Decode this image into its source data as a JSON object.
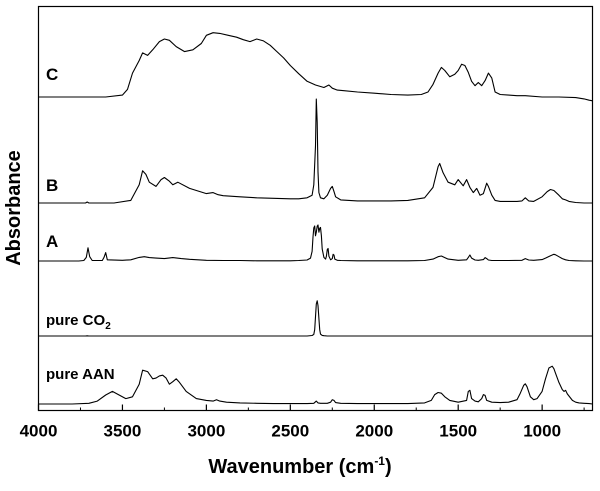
{
  "chart_data": {
    "type": "line",
    "title": "",
    "xlabel": "Wavenumber (cm-1)",
    "xlabel_parts": {
      "main": "Wavenumber (cm",
      "sup": "-1",
      "close": ")"
    },
    "ylabel": "Absorbance",
    "xlim": [
      4000,
      700
    ],
    "x_reversed": true,
    "y_ticks_labeled": false,
    "xticks": [
      4000,
      3500,
      3000,
      2500,
      2000,
      1500,
      1000
    ],
    "xtick_labels": [
      "4000",
      "3500",
      "3000",
      "2500",
      "2000",
      "1500",
      "1000"
    ],
    "grid": false,
    "legend": "none",
    "series": [
      {
        "name": "C",
        "label": {
          "main": "C",
          "sub": ""
        },
        "baseline": 0,
        "x": [
          4000,
          3600,
          3500,
          3470,
          3440,
          3400,
          3380,
          3350,
          3320,
          3280,
          3250,
          3220,
          3180,
          3130,
          3080,
          3030,
          3000,
          2960,
          2920,
          2870,
          2820,
          2780,
          2740,
          2700,
          2660,
          2620,
          2580,
          2540,
          2500,
          2450,
          2400,
          2350,
          2300,
          2270,
          2250,
          2220,
          2180,
          2100,
          2000,
          1900,
          1800,
          1720,
          1680,
          1650,
          1620,
          1600,
          1580,
          1550,
          1520,
          1500,
          1480,
          1460,
          1440,
          1420,
          1400,
          1380,
          1360,
          1340,
          1320,
          1300,
          1280,
          1250,
          1200,
          1150,
          1100,
          1000,
          900,
          800,
          750,
          720,
          700
        ],
        "y": [
          0,
          0,
          0.03,
          0.12,
          0.38,
          0.58,
          0.7,
          0.66,
          0.75,
          0.88,
          0.92,
          0.9,
          0.8,
          0.72,
          0.75,
          0.85,
          0.98,
          1.02,
          1.01,
          0.98,
          0.95,
          0.91,
          0.88,
          0.92,
          0.89,
          0.82,
          0.72,
          0.62,
          0.5,
          0.37,
          0.25,
          0.19,
          0.15,
          0.19,
          0.14,
          0.11,
          0.1,
          0.08,
          0.06,
          0.04,
          0.03,
          0.04,
          0.08,
          0.2,
          0.38,
          0.47,
          0.42,
          0.32,
          0.36,
          0.42,
          0.52,
          0.5,
          0.39,
          0.25,
          0.18,
          0.23,
          0.18,
          0.26,
          0.38,
          0.3,
          0.08,
          0.04,
          0.03,
          0.02,
          0.02,
          0.0,
          0.0,
          -0.01,
          -0.03,
          -0.05,
          -0.06
        ]
      },
      {
        "name": "B",
        "label": {
          "main": "B",
          "sub": ""
        },
        "baseline": 0,
        "x": [
          4000,
          3720,
          3710,
          3700,
          3550,
          3450,
          3400,
          3380,
          3360,
          3340,
          3300,
          3270,
          3250,
          3220,
          3200,
          3170,
          3100,
          3000,
          2960,
          2930,
          2900,
          2800,
          2700,
          2600,
          2500,
          2450,
          2400,
          2370,
          2360,
          2350,
          2345,
          2340,
          2335,
          2330,
          2320,
          2300,
          2280,
          2260,
          2250,
          2240,
          2230,
          2200,
          2100,
          2000,
          1900,
          1800,
          1700,
          1650,
          1620,
          1610,
          1590,
          1560,
          1520,
          1500,
          1470,
          1450,
          1430,
          1410,
          1390,
          1370,
          1350,
          1330,
          1320,
          1300,
          1280,
          1250,
          1200,
          1150,
          1120,
          1100,
          1080,
          1050,
          1000,
          970,
          950,
          930,
          900,
          880,
          860,
          840,
          800,
          750,
          700
        ],
        "y": [
          0,
          0,
          0.02,
          0,
          0,
          0.05,
          0.35,
          0.62,
          0.55,
          0.4,
          0.32,
          0.45,
          0.49,
          0.42,
          0.35,
          0.4,
          0.28,
          0.18,
          0.2,
          0.16,
          0.14,
          0.12,
          0.1,
          0.09,
          0.08,
          0.08,
          0.1,
          0.15,
          0.35,
          1.1,
          2.0,
          1.55,
          0.6,
          0.2,
          0.1,
          0.08,
          0.15,
          0.28,
          0.32,
          0.22,
          0.12,
          0.06,
          0.04,
          0.04,
          0.04,
          0.05,
          0.1,
          0.3,
          0.7,
          0.76,
          0.58,
          0.4,
          0.35,
          0.45,
          0.33,
          0.45,
          0.3,
          0.2,
          0.28,
          0.15,
          0.18,
          0.38,
          0.32,
          0.15,
          0.05,
          0.03,
          0.03,
          0.03,
          0.04,
          0.1,
          0.04,
          0.03,
          0.12,
          0.22,
          0.26,
          0.24,
          0.15,
          0.08,
          0.06,
          0.03,
          0.01,
          0,
          0
        ]
      },
      {
        "name": "A",
        "label": {
          "main": "A",
          "sub": ""
        },
        "baseline": 0,
        "x": [
          4000,
          3760,
          3730,
          3715,
          3705,
          3695,
          3680,
          3620,
          3610,
          3600,
          3590,
          3500,
          3450,
          3400,
          3370,
          3340,
          3300,
          3250,
          3200,
          3150,
          3100,
          3000,
          2900,
          2800,
          2700,
          2600,
          2500,
          2450,
          2400,
          2380,
          2370,
          2365,
          2360,
          2355,
          2350,
          2345,
          2340,
          2335,
          2330,
          2325,
          2320,
          2315,
          2310,
          2300,
          2290,
          2285,
          2280,
          2275,
          2270,
          2260,
          2250,
          2245,
          2240,
          2235,
          2220,
          2200,
          2100,
          2000,
          1900,
          1800,
          1700,
          1650,
          1620,
          1600,
          1580,
          1560,
          1500,
          1450,
          1440,
          1430,
          1420,
          1400,
          1380,
          1350,
          1340,
          1330,
          1320,
          1300,
          1200,
          1120,
          1100,
          1080,
          1050,
          1000,
          980,
          950,
          930,
          920,
          900,
          880,
          860,
          840,
          800,
          750,
          700
        ],
        "y": [
          0,
          0,
          0.02,
          0.15,
          0.55,
          0.18,
          0.02,
          0.02,
          0.15,
          0.35,
          0.05,
          0.03,
          0.05,
          0.15,
          0.18,
          0.14,
          0.12,
          0.1,
          0.14,
          0.1,
          0.07,
          0.03,
          0.02,
          0.02,
          0.01,
          0.01,
          0.01,
          0.02,
          0.04,
          0.12,
          0.4,
          1.0,
          1.38,
          1.46,
          1.05,
          1.2,
          1.45,
          1.5,
          1.2,
          1.36,
          1.4,
          1.05,
          0.5,
          0.15,
          0.08,
          0.2,
          0.48,
          0.52,
          0.2,
          0.05,
          0.1,
          0.28,
          0.25,
          0.08,
          0.03,
          0.02,
          0.01,
          0.01,
          0.01,
          0.01,
          0.02,
          0.08,
          0.18,
          0.21,
          0.14,
          0.08,
          0.03,
          0.05,
          0.15,
          0.25,
          0.12,
          0.04,
          0.03,
          0.06,
          0.14,
          0.1,
          0.04,
          0.02,
          0.02,
          0.03,
          0.1,
          0.04,
          0.03,
          0.06,
          0.12,
          0.22,
          0.28,
          0.26,
          0.18,
          0.1,
          0.05,
          0.02,
          0.01,
          0,
          0
        ]
      },
      {
        "name": "pure CO2",
        "label": {
          "main": "pure CO",
          "sub": "2"
        },
        "baseline": 0,
        "x": [
          4000,
          3720,
          3710,
          3700,
          2400,
          2370,
          2360,
          2355,
          2350,
          2345,
          2340,
          2335,
          2330,
          2325,
          2320,
          2310,
          2300,
          2280,
          700
        ],
        "y": [
          0,
          0,
          0.01,
          0,
          0,
          0.03,
          0.1,
          0.4,
          1.2,
          2.0,
          2.2,
          1.9,
          1.1,
          0.4,
          0.12,
          0.04,
          0.02,
          0,
          0
        ]
      },
      {
        "name": "pure AAN",
        "label": {
          "main": "pure AAN",
          "sub": ""
        },
        "baseline": 0,
        "x": [
          4000,
          3800,
          3700,
          3650,
          3600,
          3560,
          3520,
          3480,
          3440,
          3400,
          3380,
          3350,
          3320,
          3300,
          3280,
          3260,
          3240,
          3220,
          3200,
          3180,
          3160,
          3120,
          3060,
          3000,
          2960,
          2940,
          2920,
          2880,
          2800,
          2700,
          2600,
          2500,
          2400,
          2360,
          2345,
          2335,
          2320,
          2280,
          2260,
          2250,
          2240,
          2230,
          2200,
          2100,
          2000,
          1900,
          1800,
          1700,
          1660,
          1640,
          1620,
          1600,
          1580,
          1550,
          1500,
          1450,
          1440,
          1430,
          1420,
          1400,
          1380,
          1360,
          1350,
          1340,
          1330,
          1300,
          1250,
          1200,
          1150,
          1130,
          1110,
          1100,
          1090,
          1070,
          1050,
          1030,
          1000,
          980,
          960,
          940,
          930,
          920,
          900,
          880,
          870,
          860,
          850,
          820,
          800,
          780,
          750,
          720,
          700
        ],
        "y": [
          0,
          0,
          0.02,
          0.08,
          0.25,
          0.35,
          0.25,
          0.15,
          0.2,
          0.55,
          0.94,
          0.9,
          0.7,
          0.72,
          0.78,
          0.8,
          0.72,
          0.55,
          0.62,
          0.7,
          0.6,
          0.35,
          0.15,
          0.1,
          0.08,
          0.12,
          0.08,
          0.05,
          0.03,
          0.02,
          0.01,
          0.01,
          0.01,
          0.02,
          0.08,
          0.03,
          0.02,
          0.02,
          0.05,
          0.12,
          0.1,
          0.04,
          0.02,
          0.01,
          0.01,
          0.01,
          0.01,
          0.03,
          0.1,
          0.26,
          0.32,
          0.3,
          0.2,
          0.1,
          0.05,
          0.1,
          0.35,
          0.38,
          0.15,
          0.08,
          0.06,
          0.15,
          0.26,
          0.24,
          0.1,
          0.05,
          0.04,
          0.05,
          0.12,
          0.3,
          0.52,
          0.56,
          0.48,
          0.2,
          0.12,
          0.15,
          0.35,
          0.7,
          1.0,
          1.05,
          0.98,
          0.85,
          0.6,
          0.4,
          0.35,
          0.38,
          0.28,
          0.1,
          0.05,
          0.03,
          0.02,
          0.01,
          0
        ]
      }
    ]
  }
}
